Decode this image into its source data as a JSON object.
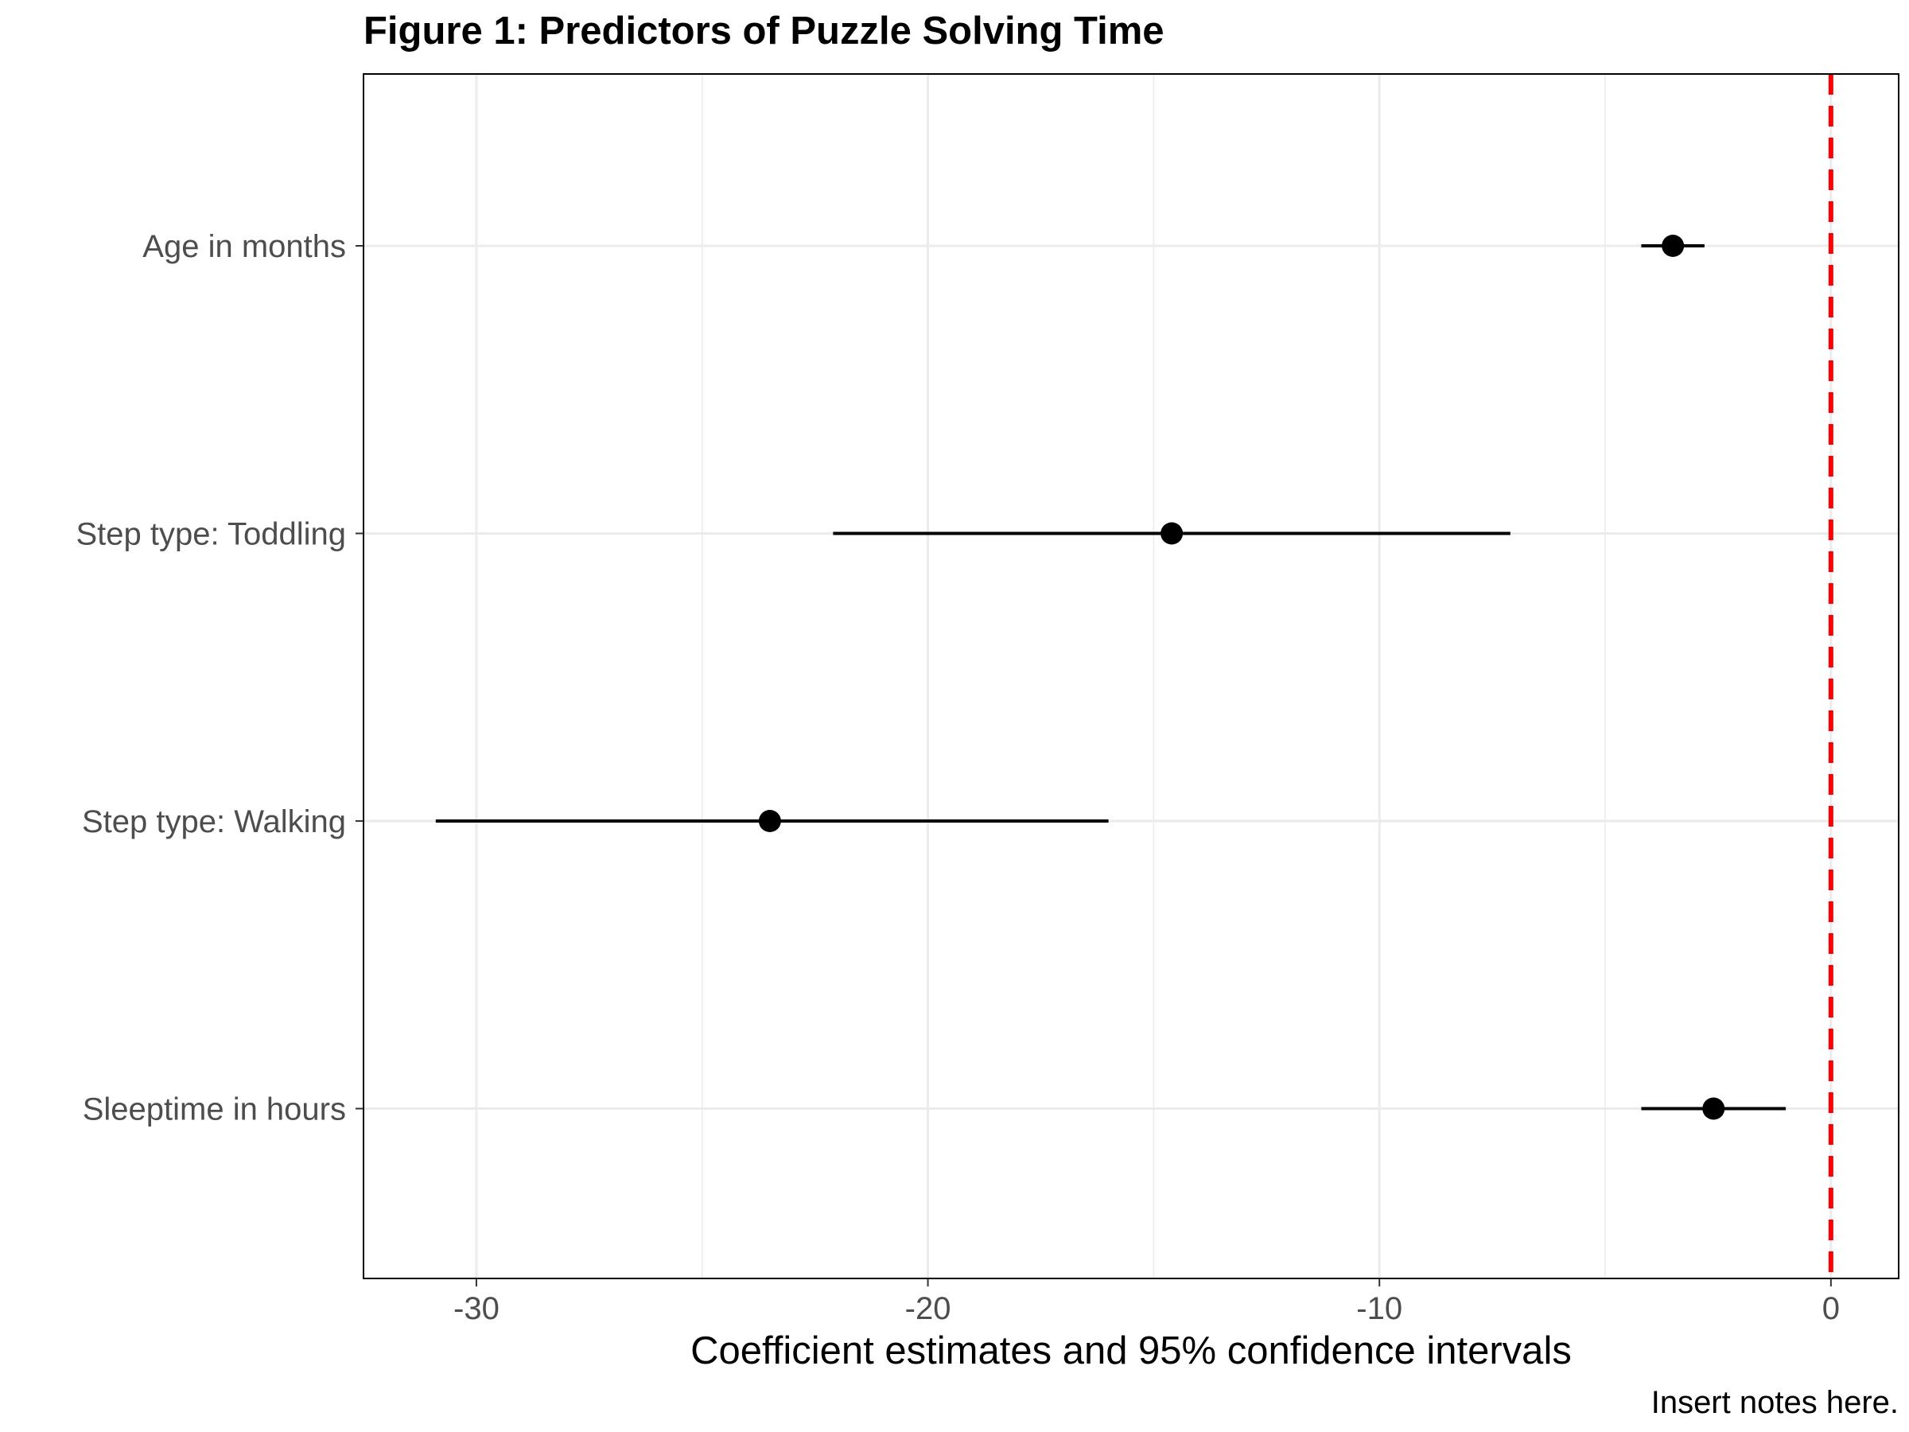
{
  "chart_data": {
    "type": "scatter",
    "subtype": "coefficient-plot",
    "title": "Figure 1: Predictors of Puzzle Solving Time",
    "xlabel": "Coefficient estimates and 95% confidence intervals",
    "ylabel": "",
    "caption": "Insert notes here.",
    "xlim": [
      -32.5,
      1.5
    ],
    "xticks": [
      -30,
      -20,
      -10,
      0
    ],
    "xtick_labels": [
      "-30",
      "-20",
      "-10",
      "0"
    ],
    "grid": true,
    "reference_line": {
      "x": 0,
      "color": "#ff0000",
      "style": "dashed"
    },
    "terms": [
      {
        "label": "Age in months",
        "estimate": -3.5,
        "ci_low": -4.2,
        "ci_high": -2.8
      },
      {
        "label": "Step type: Toddling",
        "estimate": -14.6,
        "ci_low": -22.1,
        "ci_high": -7.1
      },
      {
        "label": "Step type: Walking",
        "estimate": -23.5,
        "ci_low": -30.9,
        "ci_high": -16.0
      },
      {
        "label": "Sleeptime in hours",
        "estimate": -2.6,
        "ci_low": -4.2,
        "ci_high": -1.0
      }
    ],
    "colors": {
      "point": "#000000",
      "ci": "#000000",
      "grid": "#ebebeb",
      "panel_border": "#000000"
    }
  }
}
